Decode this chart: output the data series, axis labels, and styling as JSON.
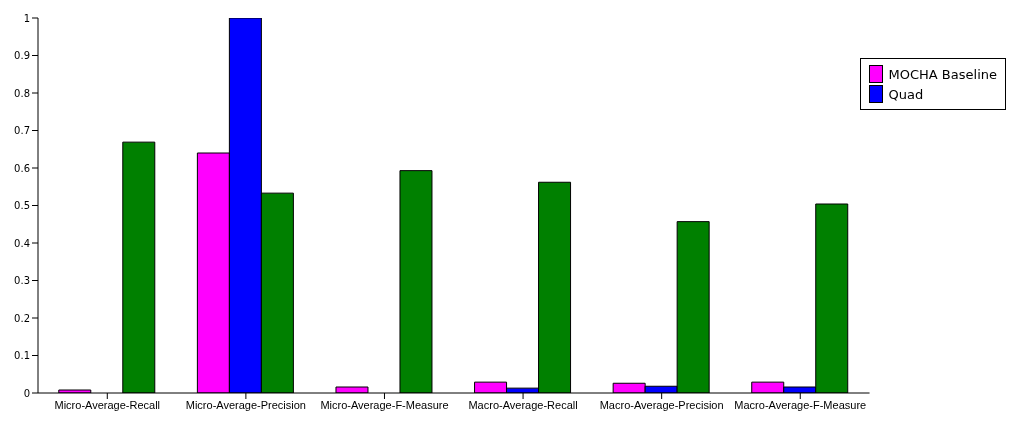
{
  "chart_data": {
    "type": "bar",
    "categories": [
      "Micro-Average-Recall",
      "Micro-Average-Precision",
      "Micro-Average-F-Measure",
      "Macro-Average-Recall",
      "Macro-Average-Precision",
      "Macro-Average-F-Measure"
    ],
    "series": [
      {
        "name": "MOCHA Baseline",
        "color": "#ff00ff",
        "values": [
          0.008,
          0.64,
          0.016,
          0.029,
          0.026,
          0.029
        ]
      },
      {
        "name": "Quad",
        "color": "#0000ff",
        "values": [
          null,
          1.0,
          null,
          0.013,
          0.018,
          0.016
        ]
      },
      {
        "color": "#008000",
        "values": [
          0.669,
          0.533,
          0.593,
          0.562,
          0.457,
          0.504
        ]
      }
    ],
    "ylim": [
      0,
      1
    ],
    "yticks": [
      0,
      0.1,
      0.2,
      0.3,
      0.4,
      0.5,
      0.6,
      0.7,
      0.8,
      0.9,
      1
    ],
    "grid": false,
    "legend": "top right"
  }
}
